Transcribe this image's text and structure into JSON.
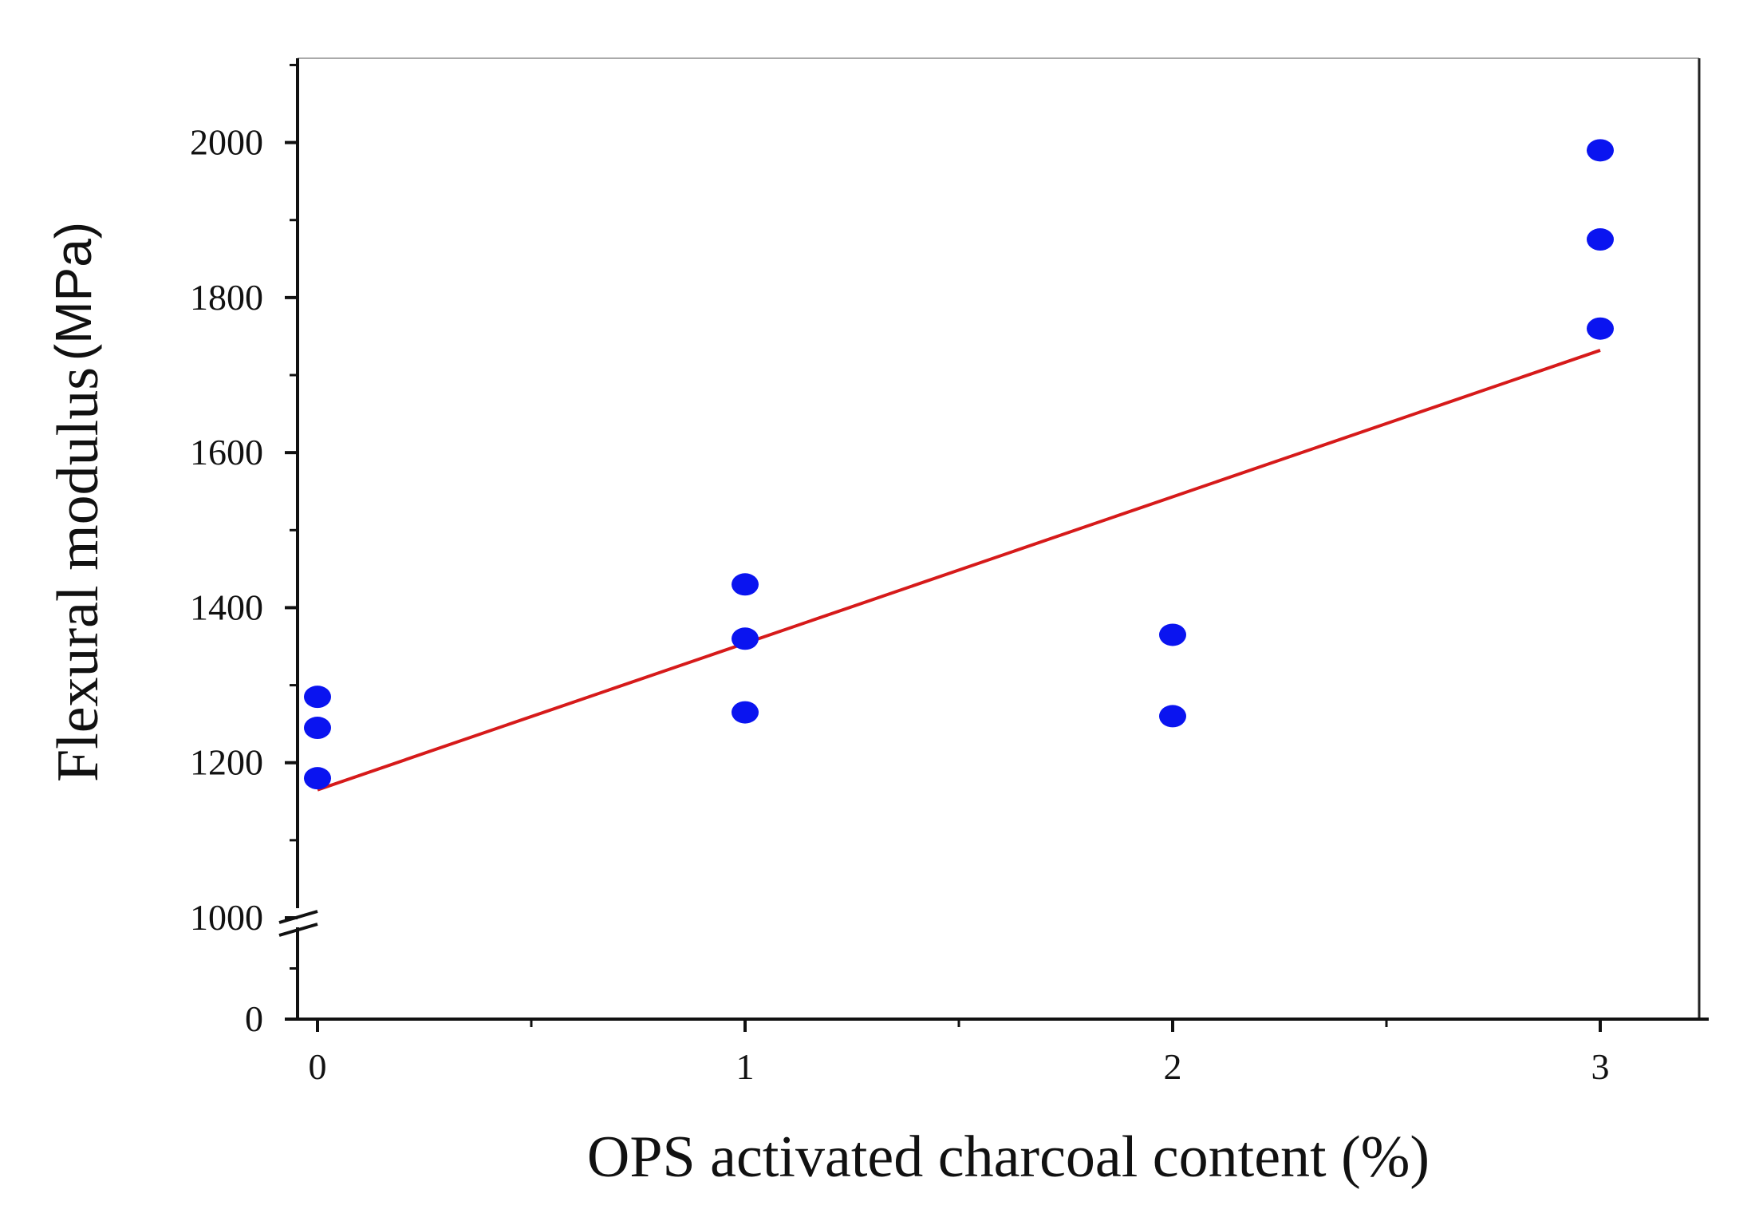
{
  "chart_data": {
    "type": "scatter",
    "title": "",
    "xlabel": "OPS activated charcoal content (%)",
    "ylabel": {
      "name": "Flexural modulus",
      "unit": "(MPa)"
    },
    "xlim": [
      -0.05,
      3.25
    ],
    "ylim": [
      0,
      2100
    ],
    "y_axis_break": {
      "below_break": [
        0,
        1000
      ],
      "above_break": [
        1000,
        2100
      ]
    },
    "x_ticks": [
      "0",
      "1",
      "2",
      "3"
    ],
    "y_ticks": [
      "0",
      "1000",
      "1200",
      "1400",
      "1600",
      "1800",
      "2000"
    ],
    "grid": false,
    "legend": "none",
    "marker_color": "#0a14f0",
    "fit_line_color": "#d61a1a",
    "series": [
      {
        "x": [
          0,
          0,
          0,
          1,
          1,
          1,
          2,
          2,
          3,
          3,
          3
        ],
        "y": [
          1285,
          1245,
          1180,
          1430,
          1360,
          1265,
          1365,
          1260,
          1990,
          1875,
          1760
        ]
      }
    ],
    "fit_line": {
      "x": [
        0,
        3
      ],
      "y": [
        1165,
        1732
      ]
    }
  }
}
